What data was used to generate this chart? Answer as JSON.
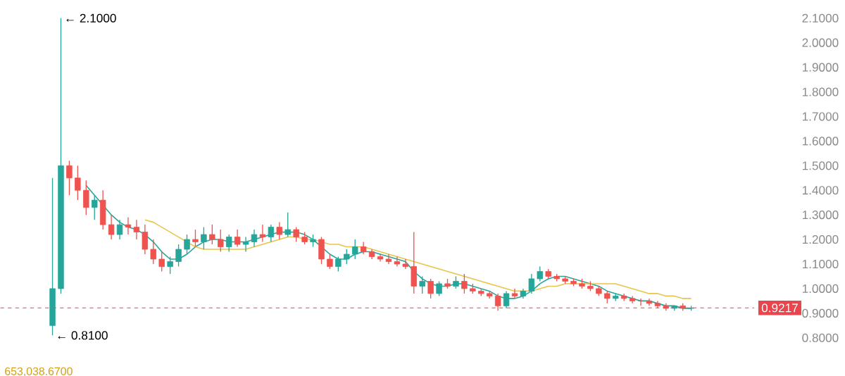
{
  "chart_data": {
    "type": "candlestick",
    "categories": [
      null,
      null,
      null,
      null,
      null,
      null,
      null,
      null,
      null,
      null,
      null,
      null,
      null,
      null,
      null,
      null,
      null,
      null,
      null,
      null,
      null,
      null,
      null,
      null,
      null,
      null,
      null,
      null,
      null,
      null,
      null,
      null,
      null,
      null,
      null,
      null,
      null,
      null,
      null,
      null,
      null,
      null,
      null,
      null,
      null,
      null,
      null,
      null,
      null,
      null,
      null,
      null,
      null,
      null,
      null,
      null,
      null,
      null,
      null,
      null,
      null,
      null,
      null,
      null,
      null,
      null,
      null,
      null,
      null,
      null,
      null,
      null,
      null,
      null,
      null,
      null,
      null
    ],
    "ohlc": [
      [
        0.85,
        1.45,
        0.81,
        1.0
      ],
      [
        1.0,
        2.1,
        0.98,
        1.5
      ],
      [
        1.5,
        1.52,
        1.38,
        1.45
      ],
      [
        1.45,
        1.5,
        1.36,
        1.4
      ],
      [
        1.4,
        1.44,
        1.3,
        1.33
      ],
      [
        1.33,
        1.38,
        1.28,
        1.36
      ],
      [
        1.36,
        1.4,
        1.24,
        1.26
      ],
      [
        1.26,
        1.3,
        1.2,
        1.22
      ],
      [
        1.22,
        1.28,
        1.2,
        1.26
      ],
      [
        1.26,
        1.29,
        1.22,
        1.25
      ],
      [
        1.25,
        1.28,
        1.2,
        1.23
      ],
      [
        1.23,
        1.26,
        1.14,
        1.16
      ],
      [
        1.16,
        1.2,
        1.1,
        1.12
      ],
      [
        1.12,
        1.15,
        1.07,
        1.09
      ],
      [
        1.09,
        1.13,
        1.06,
        1.11
      ],
      [
        1.11,
        1.18,
        1.09,
        1.16
      ],
      [
        1.16,
        1.22,
        1.14,
        1.2
      ],
      [
        1.2,
        1.24,
        1.17,
        1.19
      ],
      [
        1.19,
        1.25,
        1.16,
        1.22
      ],
      [
        1.22,
        1.26,
        1.18,
        1.2
      ],
      [
        1.2,
        1.24,
        1.15,
        1.17
      ],
      [
        1.17,
        1.22,
        1.15,
        1.21
      ],
      [
        1.21,
        1.24,
        1.17,
        1.18
      ],
      [
        1.18,
        1.21,
        1.15,
        1.19
      ],
      [
        1.19,
        1.24,
        1.17,
        1.22
      ],
      [
        1.22,
        1.26,
        1.19,
        1.21
      ],
      [
        1.21,
        1.26,
        1.19,
        1.25
      ],
      [
        1.25,
        1.27,
        1.2,
        1.22
      ],
      [
        1.22,
        1.31,
        1.21,
        1.24
      ],
      [
        1.24,
        1.25,
        1.19,
        1.21
      ],
      [
        1.21,
        1.23,
        1.18,
        1.19
      ],
      [
        1.19,
        1.22,
        1.17,
        1.2
      ],
      [
        1.2,
        1.21,
        1.1,
        1.12
      ],
      [
        1.12,
        1.14,
        1.08,
        1.09
      ],
      [
        1.09,
        1.13,
        1.07,
        1.12
      ],
      [
        1.12,
        1.16,
        1.1,
        1.14
      ],
      [
        1.14,
        1.2,
        1.12,
        1.17
      ],
      [
        1.17,
        1.19,
        1.14,
        1.15
      ],
      [
        1.15,
        1.16,
        1.12,
        1.13
      ],
      [
        1.13,
        1.14,
        1.11,
        1.12
      ],
      [
        1.12,
        1.14,
        1.1,
        1.11
      ],
      [
        1.11,
        1.13,
        1.09,
        1.1
      ],
      [
        1.1,
        1.12,
        1.08,
        1.09
      ],
      [
        1.09,
        1.23,
        0.98,
        1.01
      ],
      [
        1.01,
        1.05,
        0.98,
        1.03
      ],
      [
        1.03,
        1.04,
        0.96,
        0.98
      ],
      [
        0.98,
        1.03,
        0.97,
        1.02
      ],
      [
        1.02,
        1.04,
        1.0,
        1.01
      ],
      [
        1.01,
        1.05,
        1.0,
        1.03
      ],
      [
        1.03,
        1.06,
        0.98,
        1.0
      ],
      [
        1.0,
        1.02,
        0.98,
        0.99
      ],
      [
        0.99,
        1.0,
        0.97,
        0.98
      ],
      [
        0.98,
        0.99,
        0.96,
        0.97
      ],
      [
        0.97,
        0.98,
        0.91,
        0.93
      ],
      [
        0.93,
        0.99,
        0.92,
        0.98
      ],
      [
        0.98,
        1.0,
        0.96,
        0.97
      ],
      [
        0.97,
        1.0,
        0.96,
        0.99
      ],
      [
        0.99,
        1.06,
        0.98,
        1.04
      ],
      [
        1.04,
        1.09,
        1.03,
        1.07
      ],
      [
        1.07,
        1.08,
        1.04,
        1.05
      ],
      [
        1.05,
        1.06,
        1.03,
        1.04
      ],
      [
        1.04,
        1.05,
        1.02,
        1.03
      ],
      [
        1.03,
        1.04,
        1.01,
        1.02
      ],
      [
        1.02,
        1.04,
        1.0,
        1.01
      ],
      [
        1.01,
        1.03,
        0.99,
        1.0
      ],
      [
        1.0,
        1.01,
        0.97,
        0.98
      ],
      [
        0.98,
        0.99,
        0.94,
        0.96
      ],
      [
        0.96,
        0.98,
        0.95,
        0.97
      ],
      [
        0.97,
        0.98,
        0.95,
        0.96
      ],
      [
        0.96,
        0.97,
        0.94,
        0.95
      ],
      [
        0.95,
        0.96,
        0.93,
        0.95
      ],
      [
        0.95,
        0.96,
        0.93,
        0.94
      ],
      [
        0.94,
        0.95,
        0.92,
        0.93
      ],
      [
        0.93,
        0.94,
        0.91,
        0.92
      ],
      [
        0.92,
        0.93,
        0.91,
        0.93
      ],
      [
        0.93,
        0.94,
        0.91,
        0.92
      ],
      [
        0.92,
        0.93,
        0.91,
        0.9217
      ]
    ],
    "colors": [
      "#26a69a",
      "#26a69a",
      "#ef5350",
      "#ef5350",
      "#ef5350",
      "#26a69a",
      "#ef5350",
      "#ef5350",
      "#26a69a",
      "#ef5350",
      "#ef5350",
      "#ef5350",
      "#ef5350",
      "#ef5350",
      "#26a69a",
      "#26a69a",
      "#26a69a",
      "#ef5350",
      "#26a69a",
      "#ef5350",
      "#ef5350",
      "#26a69a",
      "#ef5350",
      "#26a69a",
      "#26a69a",
      "#ef5350",
      "#26a69a",
      "#ef5350",
      "#26a69a",
      "#ef5350",
      "#ef5350",
      "#26a69a",
      "#ef5350",
      "#ef5350",
      "#26a69a",
      "#26a69a",
      "#26a69a",
      "#ef5350",
      "#ef5350",
      "#ef5350",
      "#ef5350",
      "#ef5350",
      "#ef5350",
      "#ef5350",
      "#26a69a",
      "#ef5350",
      "#26a69a",
      "#ef5350",
      "#26a69a",
      "#ef5350",
      "#ef5350",
      "#ef5350",
      "#ef5350",
      "#ef5350",
      "#26a69a",
      "#ef5350",
      "#26a69a",
      "#26a69a",
      "#26a69a",
      "#ef5350",
      "#ef5350",
      "#ef5350",
      "#ef5350",
      "#ef5350",
      "#ef5350",
      "#ef5350",
      "#ef5350",
      "#26a69a",
      "#ef5350",
      "#ef5350",
      "#ef5350",
      "#ef5350",
      "#ef5350",
      "#ef5350",
      "#26a69a",
      "#ef5350",
      "#26a69a"
    ],
    "series": [
      {
        "type": "line",
        "color": "#26a69a",
        "values": [
          null,
          null,
          null,
          null,
          1.42,
          1.38,
          1.34,
          1.3,
          1.27,
          1.25,
          1.24,
          1.22,
          1.19,
          1.15,
          1.12,
          1.12,
          1.14,
          1.17,
          1.19,
          1.2,
          1.2,
          1.19,
          1.19,
          1.19,
          1.2,
          1.21,
          1.22,
          1.23,
          1.23,
          1.23,
          1.22,
          1.2,
          1.17,
          1.14,
          1.12,
          1.12,
          1.14,
          1.15,
          1.15,
          1.14,
          1.13,
          1.12,
          1.11,
          1.07,
          1.04,
          1.02,
          1.01,
          1.01,
          1.02,
          1.02,
          1.01,
          1.0,
          0.99,
          0.97,
          0.96,
          0.96,
          0.97,
          0.99,
          1.02,
          1.04,
          1.05,
          1.05,
          1.04,
          1.03,
          1.02,
          1.01,
          0.99,
          0.98,
          0.97,
          0.96,
          0.95,
          0.95,
          0.94,
          0.93,
          0.93,
          0.92,
          0.92
        ]
      },
      {
        "type": "line",
        "color": "#e8c547",
        "values": [
          null,
          null,
          null,
          null,
          null,
          null,
          null,
          null,
          null,
          null,
          null,
          1.28,
          1.27,
          1.25,
          1.23,
          1.21,
          1.19,
          1.17,
          1.16,
          1.16,
          1.16,
          1.16,
          1.16,
          1.16,
          1.17,
          1.18,
          1.19,
          1.2,
          1.21,
          1.21,
          1.2,
          1.2,
          1.19,
          1.18,
          1.18,
          1.17,
          1.17,
          1.17,
          1.16,
          1.15,
          1.14,
          1.13,
          1.12,
          1.11,
          1.1,
          1.09,
          1.08,
          1.07,
          1.06,
          1.05,
          1.04,
          1.03,
          1.02,
          1.01,
          1.0,
          0.99,
          0.99,
          0.99,
          1.0,
          1.01,
          1.01,
          1.02,
          1.02,
          1.02,
          1.02,
          1.02,
          1.02,
          1.02,
          1.01,
          1.0,
          0.99,
          0.98,
          0.98,
          0.97,
          0.97,
          0.96,
          0.96
        ]
      }
    ],
    "ylim": [
      0.8,
      2.1
    ],
    "yticks": [
      {
        "value": 0.8,
        "label": "0.8000"
      },
      {
        "value": 0.9,
        "label": "0.9000"
      },
      {
        "value": 1.0,
        "label": "1.0000"
      },
      {
        "value": 1.1,
        "label": "1.1000"
      },
      {
        "value": 1.2,
        "label": "1.2000"
      },
      {
        "value": 1.3,
        "label": "1.3000"
      },
      {
        "value": 1.4,
        "label": "1.4000"
      },
      {
        "value": 1.5,
        "label": "1.5000"
      },
      {
        "value": 1.6,
        "label": "1.6000"
      },
      {
        "value": 1.7,
        "label": "1.7000"
      },
      {
        "value": 1.8,
        "label": "1.8000"
      },
      {
        "value": 1.9,
        "label": "1.9000"
      },
      {
        "value": 2.0,
        "label": "2.0000"
      },
      {
        "value": 2.1,
        "label": "2.1000"
      }
    ],
    "ref_lines": [
      {
        "axis": "y",
        "value": 0.9217,
        "label": "0.9217",
        "color": "#e8464f",
        "line_style": "dashed"
      }
    ],
    "annotations": [
      "← 2.1000",
      "← 0.8100",
      "653,038.6700"
    ],
    "tick_labels": "y"
  }
}
